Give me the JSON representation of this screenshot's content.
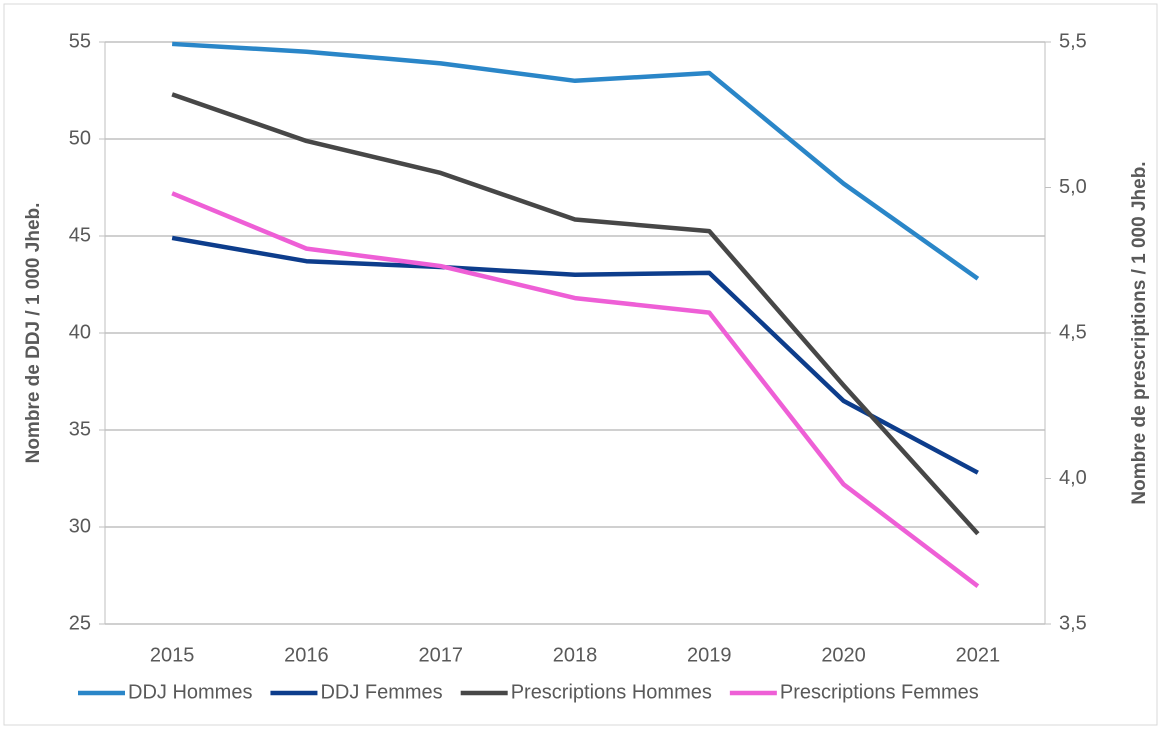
{
  "chart_data": {
    "type": "line",
    "categories": [
      "2015",
      "2016",
      "2017",
      "2018",
      "2019",
      "2020",
      "2021"
    ],
    "ylabel": "Nombre de DDJ / 1 000 Jheb.",
    "y2label": "Nombre de prescriptions / 1 000 Jheb.",
    "ylim": [
      25,
      55
    ],
    "yticks": [
      25,
      30,
      35,
      40,
      45,
      50,
      55
    ],
    "y2lim": [
      3.5,
      5.5
    ],
    "y2ticks": [
      {
        "value": 3.5,
        "label": "3,5"
      },
      {
        "value": 4.0,
        "label": "4,0"
      },
      {
        "value": 4.5,
        "label": "4,5"
      },
      {
        "value": 5.0,
        "label": "5,0"
      },
      {
        "value": 5.5,
        "label": "5,5"
      }
    ],
    "grid": true,
    "legend": "bottom",
    "series": [
      {
        "name": "DDJ Hommes",
        "color": "#2a86c8",
        "values": [
          54.9,
          54.5,
          53.9,
          53.0,
          53.4,
          47.7,
          42.8
        ]
      },
      {
        "name": "DDJ Femmes",
        "color": "#0d3d8c",
        "values": [
          44.9,
          43.7,
          43.4,
          43.0,
          43.1,
          36.5,
          32.8
        ]
      },
      {
        "name": "Prescriptions Hommes",
        "color": "#474747",
        "axis": "y2",
        "values": [
          5.32,
          5.16,
          5.05,
          4.89,
          4.85,
          4.32,
          3.81
        ]
      },
      {
        "name": "Prescriptions Femmes",
        "color": "#ee5fd6",
        "axis": "y2",
        "values": [
          4.98,
          4.79,
          4.73,
          4.62,
          4.57,
          3.98,
          3.63
        ]
      }
    ]
  }
}
